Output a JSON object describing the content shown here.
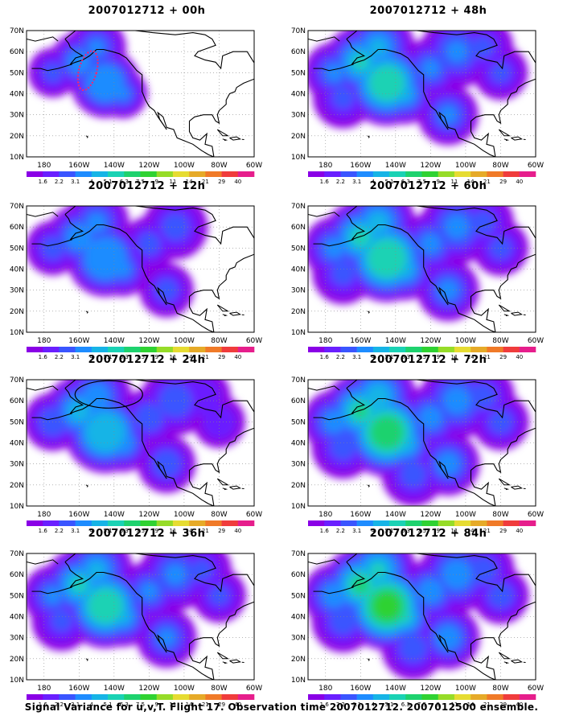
{
  "figure": {
    "caption": "Signal Variance for u,v,T. Flight 17. Observation time 2007012712. 2007012500 ensemble."
  },
  "colorbar": {
    "levels": [
      "1.6",
      "2.2",
      "3.1",
      "4",
      "5.1",
      "6.3",
      "7.5",
      "9",
      "11",
      "14",
      "21",
      "29",
      "40"
    ],
    "colors": [
      "#8a00e6",
      "#6a1fff",
      "#3a55ff",
      "#1e8cff",
      "#16b4e6",
      "#1ad2b4",
      "#1ed26e",
      "#2fd232",
      "#96dc28",
      "#e6dc32",
      "#e6aa28",
      "#f07a28",
      "#f03c3c",
      "#e61e8c"
    ]
  },
  "axes": {
    "x_ticks": [
      "180",
      "160W",
      "140W",
      "120W",
      "100W",
      "80W",
      "60W"
    ],
    "y_ticks": [
      "10N",
      "20N",
      "30N",
      "40N",
      "50N",
      "60N",
      "70N"
    ]
  },
  "panels": [
    {
      "title": "2007012712 + 00h",
      "lead_hours": 0,
      "intensity": 0.25,
      "spread": 0.45
    },
    {
      "title": "2007012712 + 48h",
      "lead_hours": 48,
      "intensity": 0.55,
      "spread": 0.9
    },
    {
      "title": "2007012712 + 12h",
      "lead_hours": 12,
      "intensity": 0.3,
      "spread": 0.65
    },
    {
      "title": "2007012712 + 60h",
      "lead_hours": 60,
      "intensity": 0.62,
      "spread": 0.95
    },
    {
      "title": "2007012712 + 24h",
      "lead_hours": 24,
      "intensity": 0.45,
      "spread": 0.8
    },
    {
      "title": "2007012712 + 72h",
      "lead_hours": 72,
      "intensity": 0.7,
      "spread": 1.0
    },
    {
      "title": "2007012712 + 36h",
      "lead_hours": 36,
      "intensity": 0.55,
      "spread": 0.88
    },
    {
      "title": "2007012712 + 84h",
      "lead_hours": 84,
      "intensity": 0.78,
      "spread": 1.0
    }
  ]
}
